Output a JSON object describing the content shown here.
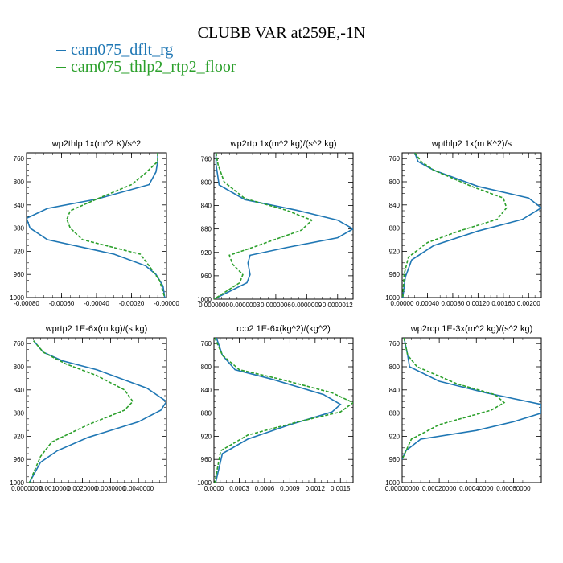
{
  "title": "CLUBB VAR at259E,-1N",
  "legend": [
    {
      "label": "cam075_dflt_rg",
      "color": "#1f77b4"
    },
    {
      "label": "cam075_thlp2_rtp2_floor",
      "color": "#2ca02c"
    }
  ],
  "chart_data": [
    {
      "type": "line",
      "title": "wp2thlp   1x(m^2 K)/s^2",
      "ylim": [
        1000,
        750
      ],
      "yticks": [
        760,
        800,
        840,
        880,
        920,
        960,
        1000
      ],
      "xlim": [
        -0.0008,
        0.0
      ],
      "xticks": [
        -0.0008,
        -0.0006,
        -0.0004,
        -0.0002,
        0.0
      ],
      "xticklabels": [
        "-0.00080",
        "-0.00060",
        "-0.00040",
        "-0.00020",
        "-0.00000"
      ],
      "series": [
        {
          "name": "cam075_dflt_rg",
          "color": "#1f77b4",
          "dash": "",
          "x": [
            -5e-05,
            -5e-05,
            -6e-05,
            -0.0001,
            -0.0004,
            -0.00068,
            -0.0008,
            -0.00078,
            -0.00068,
            -0.0003,
            -0.00012,
            -6e-05,
            -2e-05,
            -1e-05
          ],
          "y": [
            750,
            765,
            783,
            805,
            830,
            846,
            863,
            880,
            900,
            925,
            945,
            960,
            980,
            1000
          ]
        },
        {
          "name": "cam075_thlp2_rtp2_floor",
          "color": "#2ca02c",
          "dash": "4,2",
          "x": [
            -5e-05,
            -5e-05,
            -0.00012,
            -0.0002,
            -0.0004,
            -0.00055,
            -0.00057,
            -0.00055,
            -0.00048,
            -0.00015,
            -0.0001,
            -4e-05,
            -1e-05
          ],
          "y": [
            750,
            765,
            785,
            805,
            830,
            850,
            865,
            880,
            900,
            925,
            945,
            970,
            1000
          ]
        }
      ]
    },
    {
      "type": "line",
      "title": "wp2rtp   1x(m^2 kg)/(s^2 kg)",
      "ylim": [
        1000,
        750
      ],
      "yticks": [
        760,
        800,
        840,
        880,
        920,
        960,
        1000
      ],
      "xlim": [
        0.0,
        1.35e-06
      ],
      "xticks": [
        0.0,
        3e-07,
        6e-07,
        9e-07,
        1.2e-06
      ],
      "xticklabels": [
        "0.0000000",
        "0.0000003",
        "0.0000006",
        "0.0000009",
        "0.0000012"
      ],
      "series": [
        {
          "name": "cam075_dflt_rg",
          "color": "#1f77b4",
          "dash": "",
          "x": [
            2e-08,
            2e-08,
            5e-08,
            3e-07,
            8e-07,
            1.2e-06,
            1.35e-06,
            1.2e-06,
            7e-07,
            3.5e-07,
            3.3e-07,
            3.5e-07,
            3.2e-07,
            0.0
          ],
          "y": [
            750,
            770,
            805,
            830,
            848,
            865,
            880,
            895,
            912,
            925,
            938,
            958,
            972,
            1000
          ]
        },
        {
          "name": "cam075_thlp2_rtp2_floor",
          "color": "#2ca02c",
          "dash": "4,2",
          "x": [
            2e-08,
            4e-08,
            1e-07,
            3e-07,
            7e-07,
            9.5e-07,
            8.5e-07,
            4e-07,
            1.5e-07,
            1.8e-07,
            2.8e-07,
            2.5e-07,
            0.0
          ],
          "y": [
            750,
            770,
            800,
            828,
            848,
            865,
            882,
            910,
            925,
            940,
            958,
            972,
            1000
          ]
        }
      ]
    },
    {
      "type": "line",
      "title": "wpthlp2   1x(m K^2)/s",
      "ylim": [
        1000,
        750
      ],
      "yticks": [
        760,
        800,
        840,
        880,
        920,
        960,
        1000
      ],
      "xlim": [
        0.0,
        0.0022
      ],
      "xticks": [
        0.0,
        0.0004,
        0.0008,
        0.0012,
        0.0016,
        0.002
      ],
      "xticklabels": [
        "0.00000",
        "0.00040",
        "0.00080",
        "0.00120",
        "0.00160",
        "0.00200"
      ],
      "series": [
        {
          "name": "cam075_dflt_rg",
          "color": "#1f77b4",
          "dash": "",
          "x": [
            0.0002,
            0.00025,
            0.0005,
            0.0012,
            0.002,
            0.0022,
            0.0019,
            0.0012,
            0.0005,
            0.00015,
            5e-05,
            1e-05
          ],
          "y": [
            750,
            765,
            780,
            808,
            828,
            845,
            865,
            885,
            910,
            935,
            965,
            1000
          ]
        },
        {
          "name": "cam075_thlp2_rtp2_floor",
          "color": "#2ca02c",
          "dash": "4,2",
          "x": [
            0.0002,
            0.0003,
            0.0005,
            0.0011,
            0.0016,
            0.00165,
            0.0015,
            0.0009,
            0.0004,
            0.0001,
            3e-05,
            1e-05
          ],
          "y": [
            750,
            765,
            780,
            808,
            828,
            845,
            865,
            885,
            905,
            930,
            960,
            1000
          ]
        }
      ]
    },
    {
      "type": "line",
      "title": "wprtp2   1E-6x(m kg)/(s kg)",
      "ylim": [
        1000,
        750
      ],
      "yticks": [
        760,
        800,
        840,
        880,
        920,
        960,
        1000
      ],
      "xlim": [
        0.0,
        0.005
      ],
      "xticks": [
        0.0,
        0.001,
        0.002,
        0.003,
        0.004
      ],
      "xticklabels": [
        "0.0000000",
        "0.0010000",
        "0.0020000",
        "0.0030000",
        "0.0040000"
      ],
      "series": [
        {
          "name": "cam075_dflt_rg",
          "color": "#1f77b4",
          "dash": "",
          "x": [
            0.00025,
            0.0006,
            0.0013,
            0.0025,
            0.0043,
            0.005,
            0.0048,
            0.004,
            0.0022,
            0.0011,
            0.0005,
            0.0001
          ],
          "y": [
            755,
            775,
            790,
            805,
            837,
            860,
            875,
            895,
            922,
            945,
            965,
            1000
          ]
        },
        {
          "name": "cam075_thlp2_rtp2_floor",
          "color": "#2ca02c",
          "dash": "4,2",
          "x": [
            0.00025,
            0.0006,
            0.0014,
            0.0025,
            0.0035,
            0.0038,
            0.0035,
            0.0022,
            0.0009,
            0.0005,
            0.0001
          ],
          "y": [
            755,
            775,
            795,
            815,
            840,
            860,
            875,
            900,
            930,
            955,
            1000
          ]
        }
      ]
    },
    {
      "type": "line",
      "title": "rcp2   1E-6x(kg^2)/(kg^2)",
      "ylim": [
        1000,
        750
      ],
      "yticks": [
        760,
        800,
        840,
        880,
        920,
        960,
        1000
      ],
      "xlim": [
        0.0,
        0.00165
      ],
      "xticks": [
        0.0,
        0.0003,
        0.0006,
        0.0009,
        0.0012,
        0.0015
      ],
      "xticklabels": [
        "0.0000",
        "0.0003",
        "0.0006",
        "0.0009",
        "0.0012",
        "0.0015"
      ],
      "series": [
        {
          "name": "cam075_dflt_rg",
          "color": "#1f77b4",
          "dash": "",
          "x": [
            3e-05,
            0.0001,
            0.00025,
            0.0007,
            0.0013,
            0.0015,
            0.0014,
            0.0009,
            0.0004,
            0.0001,
            2e-05
          ],
          "y": [
            750,
            780,
            805,
            822,
            848,
            865,
            878,
            900,
            925,
            950,
            1000
          ]
        },
        {
          "name": "cam075_thlp2_rtp2_floor",
          "color": "#2ca02c",
          "dash": "4,2",
          "x": [
            1e-05,
            0.0001,
            0.0003,
            0.0008,
            0.0014,
            0.00165,
            0.0015,
            0.001,
            0.0004,
            8e-05,
            1e-05
          ],
          "y": [
            750,
            780,
            805,
            822,
            845,
            862,
            878,
            895,
            918,
            945,
            1000
          ]
        }
      ]
    },
    {
      "type": "line",
      "title": "wp2rcp   1E-3x(m^2 kg)/(s^2 kg)",
      "ylim": [
        1000,
        750
      ],
      "yticks": [
        760,
        800,
        840,
        880,
        920,
        960,
        1000
      ],
      "xlim": [
        0.0,
        0.00075
      ],
      "xticks": [
        0.0,
        0.0002,
        0.0004,
        0.0006
      ],
      "xticklabels": [
        "0.00000000",
        "0.00020000",
        "0.00040000",
        "0.00060000"
      ],
      "series": [
        {
          "name": "cam075_dflt_rg",
          "color": "#1f77b4",
          "dash": "",
          "x": [
            1e-05,
            3e-05,
            4e-05,
            0.0002,
            0.00045,
            0.00075,
            0.00075,
            0.0006,
            0.0004,
            0.0001,
            2e-05,
            0.0
          ],
          "y": [
            750,
            780,
            800,
            825,
            845,
            865,
            880,
            895,
            910,
            925,
            945,
            960
          ]
        },
        {
          "name": "cam075_thlp2_rtp2_floor",
          "color": "#2ca02c",
          "dash": "4,2",
          "x": [
            1e-05,
            3e-05,
            8e-05,
            0.0003,
            0.0005,
            0.00055,
            0.00048,
            0.0002,
            5e-05,
            0.0
          ],
          "y": [
            750,
            780,
            800,
            830,
            848,
            862,
            875,
            900,
            925,
            960
          ]
        }
      ]
    }
  ]
}
